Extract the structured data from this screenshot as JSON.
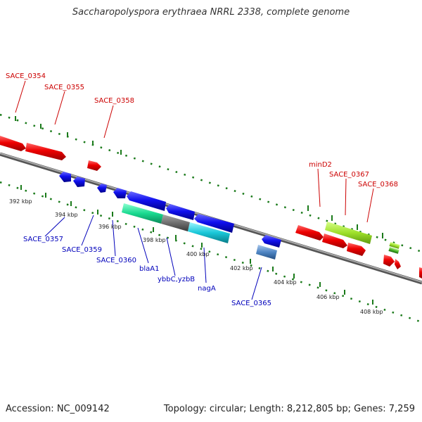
{
  "title": "Saccharopolyspora erythraea NRRL 2338, complete genome",
  "footer": {
    "accession": "Accession: NC_009142",
    "summary": "Topology: circular; Length: 8,212,805 bp; Genes: 7,259"
  },
  "colors": {
    "forward_label": "#cc0000",
    "reverse_label": "#0000bb",
    "backbone": "#888888",
    "tick": "#1a7a1a"
  },
  "kbp_labels": [
    "392 kbp",
    "394 kbp",
    "396 kbp",
    "398 kbp",
    "400 kbp",
    "402 kbp",
    "404 kbp",
    "406 kbp",
    "408 kbp"
  ],
  "gene_labels": {
    "forward": [
      "SACE_0354",
      "SACE_0355",
      "SACE_0358",
      "minD2",
      "SACE_0367",
      "SACE_0368"
    ],
    "reverse": [
      "SACE_0357",
      "SACE_0359",
      "SACE_0360",
      "blaA1",
      "ybbC,yzbB",
      "nagA",
      "SACE_0365"
    ]
  }
}
